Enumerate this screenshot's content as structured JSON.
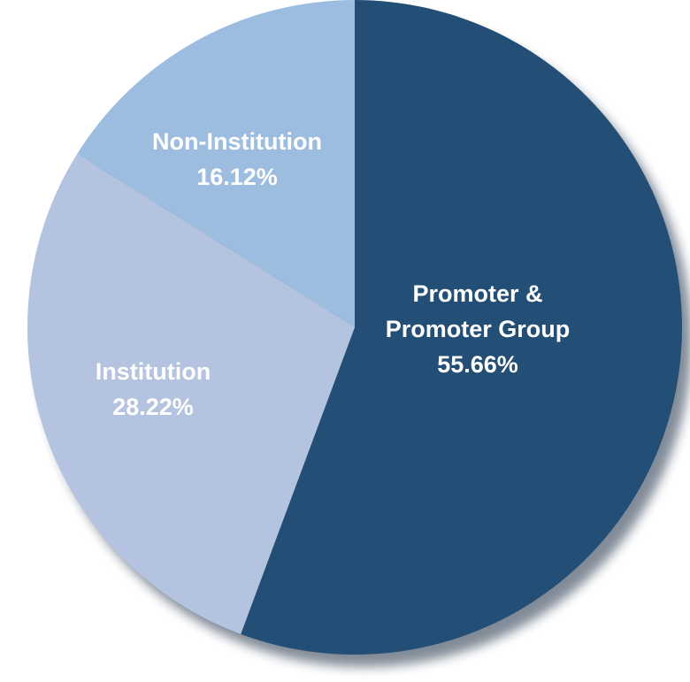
{
  "chart_data": {
    "type": "pie",
    "categories": [
      "Promoter & Promoter Group",
      "Institution",
      "Non-Institution"
    ],
    "values": [
      55.66,
      28.22,
      16.12
    ],
    "value_labels": [
      "55.66%",
      "28.22%",
      "16.12%"
    ],
    "colors": [
      "#234e75",
      "#b4c3e0",
      "#9dbde0"
    ]
  }
}
